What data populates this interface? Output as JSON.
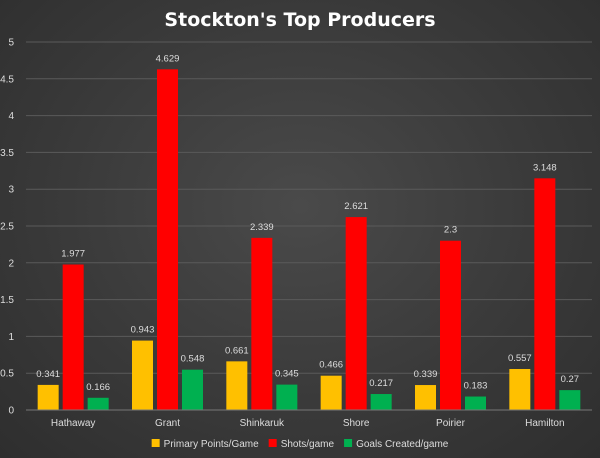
{
  "chart_data": {
    "type": "bar",
    "title": "Stockton's Top Producers",
    "xlabel": "",
    "ylabel": "",
    "categories": [
      "Hathaway",
      "Grant",
      "Shinkaruk",
      "Shore",
      "Poirier",
      "Hamilton"
    ],
    "ylim": [
      0,
      5
    ],
    "yticks": [
      "0",
      "0.5",
      "1",
      "1.5",
      "2",
      "2.5",
      "3",
      "3.5",
      "4",
      "4.5",
      "5"
    ],
    "grid": true,
    "legend_position": "bottom",
    "series": [
      {
        "name": "Primary Points/Game",
        "color": "#ffc000",
        "values": [
          0.341,
          0.943,
          0.661,
          0.466,
          0.339,
          0.557
        ]
      },
      {
        "name": "Shots/game",
        "color": "#ff0000",
        "values": [
          1.977,
          4.629,
          2.339,
          2.621,
          2.3,
          3.148
        ]
      },
      {
        "name": "Goals Created/game",
        "color": "#00b050",
        "values": [
          0.166,
          0.548,
          0.345,
          0.217,
          0.183,
          0.27
        ]
      }
    ]
  }
}
